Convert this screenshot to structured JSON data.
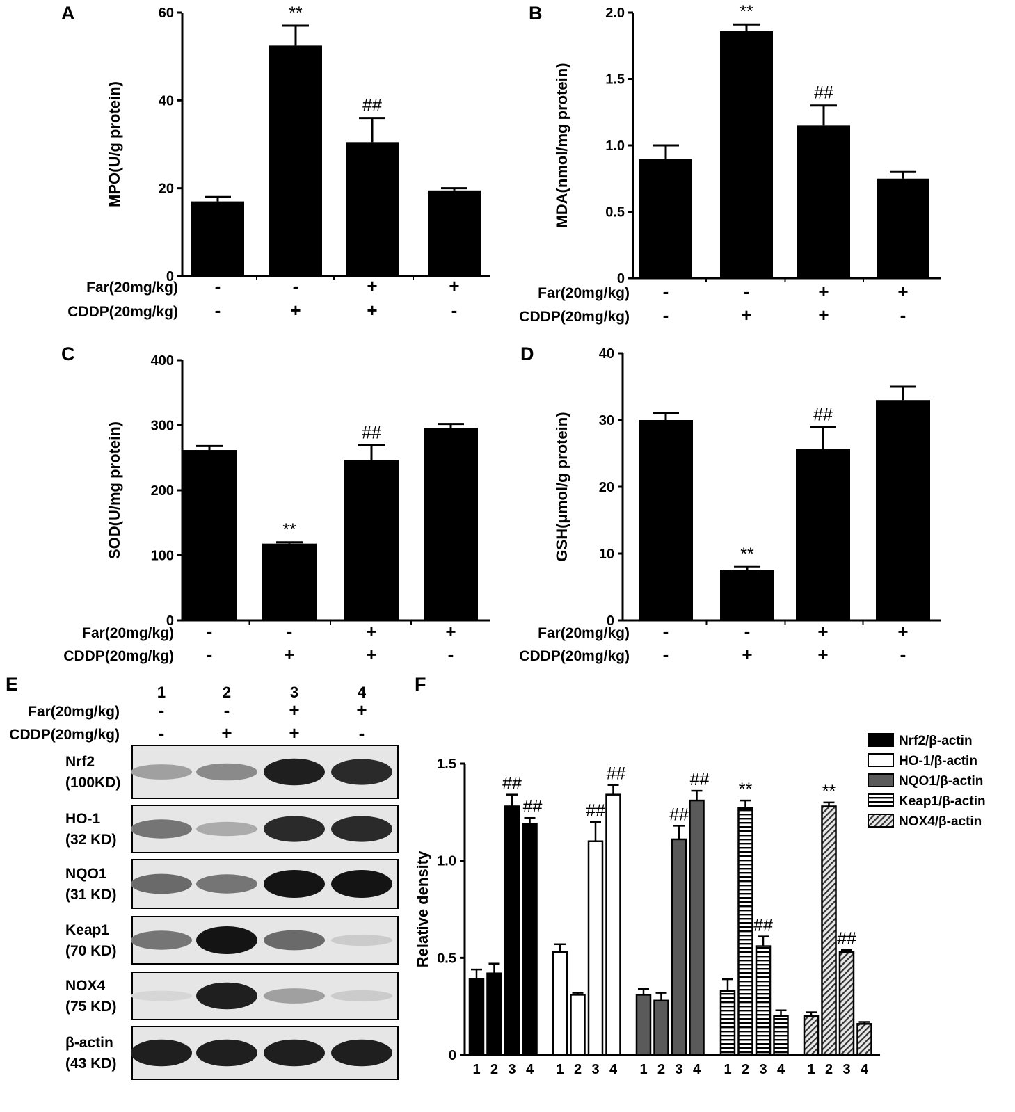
{
  "colors": {
    "ink": "#000000",
    "paper": "#ffffff",
    "nqo1_fill": "#5a5a5a",
    "blot_bg": "#e6e6e6"
  },
  "conditions": {
    "rows": [
      {
        "label": "Far(20mg/kg)",
        "signs": [
          "-",
          "-",
          "+",
          "+"
        ]
      },
      {
        "label": "CDDP(20mg/kg)",
        "signs": [
          "-",
          "+",
          "+",
          "-"
        ]
      }
    ]
  },
  "chart_data": [
    {
      "panel": "A",
      "type": "bar",
      "ylabel": "MPO(U/g protein)",
      "ylim": [
        0,
        60
      ],
      "yticks": [
        0,
        20,
        40,
        60
      ],
      "values": [
        17,
        52.5,
        30.5,
        19.5
      ],
      "errors": [
        1,
        4.5,
        5.5,
        0.5
      ],
      "marks": [
        "",
        "**",
        "##",
        ""
      ]
    },
    {
      "panel": "B",
      "type": "bar",
      "ylabel": "MDA(nmol/mg protein)",
      "ylim": [
        0,
        2.0
      ],
      "yticks": [
        "0",
        "0.5",
        "1.0",
        "1.5",
        "2.0"
      ],
      "values": [
        0.9,
        1.86,
        1.15,
        0.75
      ],
      "errors": [
        0.1,
        0.05,
        0.15,
        0.05
      ],
      "marks": [
        "",
        "**",
        "##",
        ""
      ]
    },
    {
      "panel": "C",
      "type": "bar",
      "ylabel": "SOD(U/mg protein)",
      "ylim": [
        0,
        400
      ],
      "yticks": [
        0,
        100,
        200,
        300,
        400
      ],
      "values": [
        262,
        118,
        246,
        296
      ],
      "errors": [
        6,
        2,
        23,
        6
      ],
      "marks": [
        "",
        "**",
        "##",
        ""
      ]
    },
    {
      "panel": "D",
      "type": "bar",
      "ylabel": "GSH(μmol/g protein)",
      "ylim": [
        0,
        40
      ],
      "yticks": [
        0,
        10,
        20,
        30,
        40
      ],
      "values": [
        30,
        7.5,
        25.7,
        33
      ],
      "errors": [
        1,
        0.5,
        3.2,
        2
      ],
      "marks": [
        "",
        "**",
        "##",
        ""
      ]
    },
    {
      "panel": "F",
      "type": "bar",
      "ylabel": "Relative density",
      "ylim": [
        0,
        1.5
      ],
      "yticks": [
        "0",
        "0.5",
        "1.0",
        "1.5"
      ],
      "categories": [
        "1",
        "2",
        "3",
        "4"
      ],
      "series": [
        {
          "name": "Nrf2/β-actin",
          "values": [
            0.39,
            0.42,
            1.28,
            1.19
          ],
          "errors": [
            0.05,
            0.05,
            0.06,
            0.03
          ],
          "marks": [
            "",
            "",
            "##",
            "##"
          ]
        },
        {
          "name": "HO-1/β-actin",
          "values": [
            0.53,
            0.31,
            1.1,
            1.34
          ],
          "errors": [
            0.04,
            0.01,
            0.1,
            0.05
          ],
          "marks": [
            "",
            "",
            "##",
            "##"
          ]
        },
        {
          "name": "NQO1/β-actin",
          "values": [
            0.31,
            0.28,
            1.11,
            1.31
          ],
          "errors": [
            0.03,
            0.04,
            0.07,
            0.05
          ],
          "marks": [
            "",
            "",
            "##",
            "##"
          ]
        },
        {
          "name": "Keap1/β-actin",
          "values": [
            0.33,
            1.27,
            0.56,
            0.2
          ],
          "errors": [
            0.06,
            0.04,
            0.05,
            0.03
          ],
          "marks": [
            "",
            "**",
            "##",
            ""
          ]
        },
        {
          "name": "NOX4/β-actin",
          "values": [
            0.2,
            1.28,
            0.53,
            0.16
          ],
          "errors": [
            0.02,
            0.02,
            0.01,
            0.01
          ],
          "marks": [
            "",
            "**",
            "##",
            ""
          ]
        }
      ]
    }
  ],
  "blot": {
    "panel": "E",
    "lanes": [
      "1",
      "2",
      "3",
      "4"
    ],
    "proteins": [
      {
        "name": "Nrf2",
        "size": "(100KD)",
        "intensity": [
          0.35,
          0.45,
          0.95,
          0.9
        ]
      },
      {
        "name": "HO-1",
        "size": "(32 KD)",
        "intensity": [
          0.55,
          0.3,
          0.9,
          0.9
        ]
      },
      {
        "name": "NQO1",
        "size": "(31 KD)",
        "intensity": [
          0.6,
          0.55,
          1.0,
          1.0
        ]
      },
      {
        "name": "Keap1",
        "size": "(70 KD)",
        "intensity": [
          0.55,
          1.0,
          0.6,
          0.15
        ]
      },
      {
        "name": "NOX4",
        "size": "(75 KD)",
        "intensity": [
          0.1,
          0.95,
          0.35,
          0.15
        ]
      },
      {
        "name": "β-actin",
        "size": "(43 KD)",
        "intensity": [
          0.95,
          0.95,
          0.95,
          0.95
        ]
      }
    ]
  }
}
